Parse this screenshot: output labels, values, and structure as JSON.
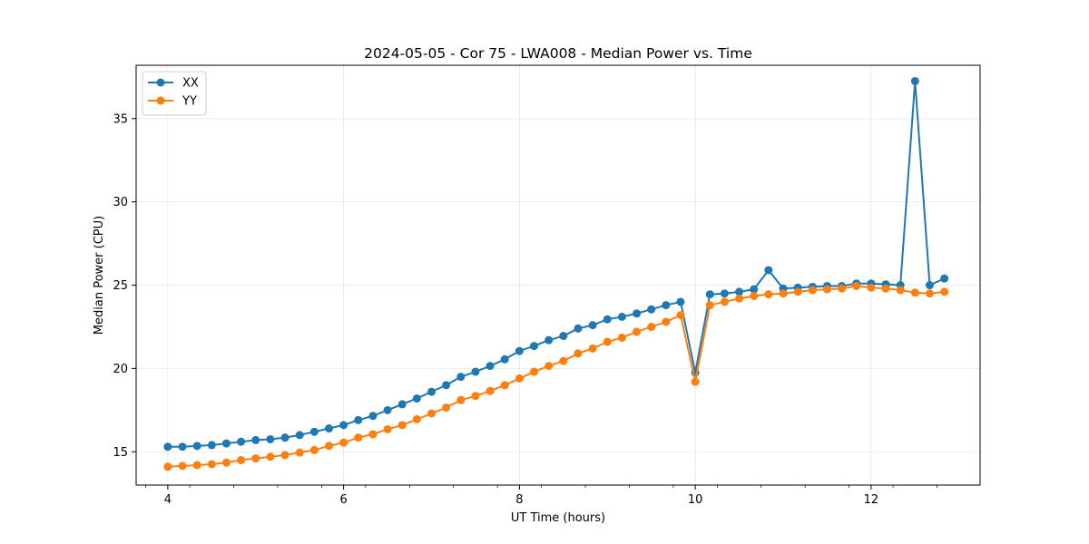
{
  "chart_data": {
    "type": "line",
    "title": "2024-05-05 - Cor 75 - LWA008 - Median Power vs. Time",
    "xlabel": "UT Time (hours)",
    "ylabel": "Median Power (CPU)",
    "xlim": [
      3.64,
      13.24
    ],
    "ylim": [
      13.0,
      38.2
    ],
    "xticks": [
      4,
      6,
      8,
      10,
      12
    ],
    "xticklabels": [
      "4",
      "6",
      "8",
      "10",
      "12"
    ],
    "yticks": [
      15,
      20,
      25,
      30,
      35
    ],
    "yticklabels": [
      "15",
      "20",
      "25",
      "30",
      "35"
    ],
    "grid": true,
    "legend_position": "top-left",
    "x": [
      4.0,
      4.1667,
      4.3333,
      4.5,
      4.6667,
      4.8333,
      5.0,
      5.1667,
      5.3333,
      5.5,
      5.6667,
      5.8333,
      6.0,
      6.1667,
      6.3333,
      6.5,
      6.6667,
      6.8333,
      7.0,
      7.1667,
      7.3333,
      7.5,
      7.6667,
      7.8333,
      8.0,
      8.1667,
      8.3333,
      8.5,
      8.6667,
      8.8333,
      9.0,
      9.1667,
      9.3333,
      9.5,
      9.6667,
      9.8333,
      10.0,
      10.1667,
      10.3333,
      10.5,
      10.6667,
      10.8333,
      11.0,
      11.1667,
      11.3333,
      11.5,
      11.6667,
      11.8333,
      12.0,
      12.1667,
      12.3333,
      12.5,
      12.6667,
      12.8333
    ],
    "series": [
      {
        "name": "XX",
        "color": "#1f77b4",
        "values": [
          15.3,
          15.3,
          15.35,
          15.4,
          15.5,
          15.6,
          15.7,
          15.75,
          15.85,
          16.0,
          16.2,
          16.4,
          16.6,
          16.9,
          17.15,
          17.5,
          17.85,
          18.2,
          18.6,
          19.0,
          19.5,
          19.8,
          20.15,
          20.55,
          21.05,
          21.35,
          21.7,
          21.95,
          22.4,
          22.6,
          22.95,
          23.1,
          23.3,
          23.55,
          23.8,
          24.0,
          19.75,
          24.45,
          24.5,
          24.6,
          24.75,
          25.9,
          24.8,
          24.85,
          24.9,
          24.95,
          24.95,
          25.1,
          25.1,
          25.05,
          25.0,
          37.25,
          25.0,
          25.4
        ]
      },
      {
        "name": "YY",
        "color": "#ff7f0e",
        "values": [
          14.1,
          14.15,
          14.2,
          14.25,
          14.35,
          14.5,
          14.6,
          14.7,
          14.8,
          14.95,
          15.1,
          15.35,
          15.55,
          15.85,
          16.05,
          16.35,
          16.6,
          16.95,
          17.3,
          17.65,
          18.1,
          18.35,
          18.65,
          19.0,
          19.4,
          19.8,
          20.15,
          20.45,
          20.9,
          21.2,
          21.6,
          21.85,
          22.2,
          22.5,
          22.8,
          23.2,
          19.2,
          23.8,
          24.0,
          24.2,
          24.35,
          24.45,
          24.5,
          24.6,
          24.7,
          24.75,
          24.8,
          24.95,
          24.85,
          24.8,
          24.7,
          24.55,
          24.5,
          24.6
        ]
      }
    ]
  }
}
